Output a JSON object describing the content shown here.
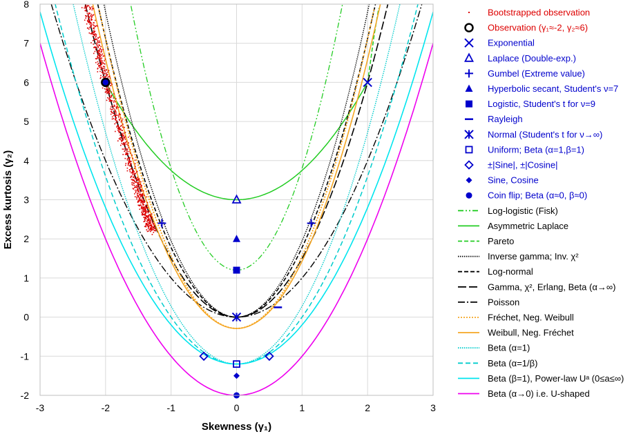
{
  "chart_data": {
    "type": "scatter",
    "xlabel": "Skewness (γ₁)",
    "ylabel": "Excess kurtosis (γ₂)",
    "xlim": [
      -3,
      3
    ],
    "ylim": [
      -2,
      8
    ],
    "xticks": [
      "-3",
      "-2",
      "-1",
      "0",
      "1",
      "2",
      "3"
    ],
    "yticks": [
      "-2",
      "-1",
      "0",
      "1",
      "2",
      "3",
      "4",
      "5",
      "6",
      "7",
      "8"
    ],
    "grid": true,
    "legend_position": "right",
    "points": [
      {
        "name": "Observation (γ₁≈-2, γ₂≈6)",
        "x": -2,
        "y": 6,
        "marker": "circle-open",
        "color": "#000000"
      },
      {
        "name": "Exponential",
        "x": 2,
        "y": 6,
        "marker": "x",
        "color": "#0000cc"
      },
      {
        "name": "Laplace (Double-exp.)",
        "x": 0,
        "y": 3,
        "marker": "triangle-open",
        "color": "#0000cc"
      },
      {
        "name": "Gumbel (Extreme value)",
        "x": 1.14,
        "y": 2.4,
        "marker": "plus",
        "color": "#0000cc"
      },
      {
        "name": "Gumbel (Extreme value)",
        "x": -1.14,
        "y": 2.4,
        "marker": "plus",
        "color": "#0000cc"
      },
      {
        "name": "Hyperbolic secant, Student's ν=7",
        "x": 0,
        "y": 2,
        "marker": "triangle",
        "color": "#0000cc"
      },
      {
        "name": "Logistic, Student's t for ν=9",
        "x": 0,
        "y": 1.2,
        "marker": "square",
        "color": "#0000cc"
      },
      {
        "name": "Rayleigh",
        "x": 0.63,
        "y": 0.25,
        "marker": "dash",
        "color": "#0000cc"
      },
      {
        "name": "Normal (Student's t for ν→∞)",
        "x": 0,
        "y": 0,
        "marker": "asterisk",
        "color": "#0000cc"
      },
      {
        "name": "Uniform; Beta (α=1,β=1)",
        "x": 0,
        "y": -1.2,
        "marker": "square-open",
        "color": "#0000cc"
      },
      {
        "name": "±|Sine|, ±|Cosine|",
        "x": -0.5,
        "y": -1,
        "marker": "diamond-open",
        "color": "#0000cc"
      },
      {
        "name": "±|Sine|, ±|Cosine|",
        "x": 0.5,
        "y": -1,
        "marker": "diamond-open",
        "color": "#0000cc"
      },
      {
        "name": "Sine, Cosine",
        "x": 0,
        "y": -1.5,
        "marker": "diamond",
        "color": "#0000cc"
      },
      {
        "name": "Coin flip; Beta (α≈0, β≈0)",
        "x": 0,
        "y": -2,
        "marker": "circle",
        "color": "#0000cc"
      },
      {
        "name": "Exponential (marker overlay on observation)",
        "x": -2,
        "y": 6,
        "marker": "circle",
        "color": "#0000cc"
      }
    ],
    "bootstrap_cloud": {
      "name": "Bootstrapped observation",
      "color": "#dd0000",
      "center_line": [
        [
          -2.3,
          8
        ],
        [
          -2.0,
          6
        ],
        [
          -1.55,
          3.5
        ],
        [
          -1.3,
          2.2
        ]
      ],
      "count": 900
    },
    "curves": [
      {
        "name": "Log-logistic (Fisk)",
        "color": "#22cc22",
        "dash": "8 3 2 3 2 3",
        "width": 1.3,
        "shape": "parabola",
        "params": {
          "vertex": 1.2,
          "a": 2.6
        },
        "x_range": [
          -2,
          2
        ]
      },
      {
        "name": "Asymmetric Laplace",
        "color": "#22cc22",
        "dash": "",
        "width": 1.5,
        "shape": "parabola",
        "params": {
          "vertex": 3.0,
          "a": 0.75
        },
        "x_range": [
          -2,
          2
        ]
      },
      {
        "name": "Pareto",
        "color": "#22cc22",
        "dash": "6 3",
        "width": 1.5,
        "shape": "points",
        "points": [
          [
            2.0,
            6.0
          ],
          [
            2.05,
            6.6
          ],
          [
            2.1,
            7.2
          ],
          [
            2.17,
            7.9
          ]
        ]
      },
      {
        "name": "Inverse gamma; Inv. χ²",
        "color": "#000000",
        "dash": "1.5 1.5",
        "width": 1.4,
        "shape": "parabola",
        "params": {
          "vertex": 0,
          "a": 1.95
        },
        "x_range": [
          -2.03,
          2.03
        ]
      },
      {
        "name": "Log-normal",
        "color": "#000000",
        "dash": "6 3",
        "width": 1.6,
        "shape": "parabola",
        "params": {
          "vertex": 0,
          "a": 1.78
        },
        "x_range": [
          -2.12,
          2.12
        ]
      },
      {
        "name": "Gamma, χ², Erlang, Beta (α→∞)",
        "color": "#000000",
        "dash": "12 4",
        "width": 1.6,
        "shape": "parabola",
        "params": {
          "vertex": 0,
          "a": 1.5
        },
        "x_range": [
          -2.31,
          2.31
        ]
      },
      {
        "name": "Poisson",
        "color": "#000000",
        "dash": "10 3 2 3",
        "width": 1.4,
        "shape": "parabola",
        "params": {
          "vertex": 0,
          "a": 1.0
        },
        "x_range": [
          -2.83,
          2.83
        ]
      },
      {
        "name": "Fréchet, Neg. Weibull",
        "color": "#f5a623",
        "dash": "2 2",
        "width": 2.0,
        "shape": "parabola",
        "params": {
          "vertex": -0.29,
          "a": 1.85
        },
        "x_range": [
          -2.1,
          2.1
        ]
      },
      {
        "name": "Weibull, Neg. Fréchet",
        "color": "#f5a623",
        "dash": "",
        "width": 1.6,
        "shape": "parabola",
        "params": {
          "vertex": -0.29,
          "a": 1.72
        },
        "x_range": [
          -2.2,
          2.2
        ]
      },
      {
        "name": "Beta (α=1)",
        "color": "#00cccc",
        "dash": "1.5 1.5",
        "width": 1.4,
        "shape": "parabola",
        "params": {
          "vertex": -1.2,
          "a": 1.48
        },
        "x_range": [
          -2.5,
          2.5
        ]
      },
      {
        "name": "Beta (α=1/β)",
        "color": "#00cccc",
        "dash": "7 4",
        "width": 1.5,
        "shape": "parabola",
        "params": {
          "vertex": -1.2,
          "a": 1.2
        },
        "x_range": [
          -2.8,
          2.8
        ]
      },
      {
        "name": "Beta (β=1), Power-law Uᵃ (0≤a≤∞)",
        "color": "#00e5ee",
        "dash": "",
        "width": 1.6,
        "shape": "parabola",
        "params": {
          "vertex": -1.2,
          "a": 1.0
        },
        "x_range": [
          -3,
          3
        ]
      },
      {
        "name": "Beta (α→0) i.e. U-shaped",
        "color": "#ee00ee",
        "dash": "",
        "width": 1.6,
        "shape": "parabola",
        "params": {
          "vertex": -2.0,
          "a": 1.0
        },
        "x_range": [
          -3,
          3
        ]
      }
    ]
  },
  "legend": [
    {
      "label": "Bootstrapped observation",
      "marker": "dot",
      "color": "#dd0000",
      "text_color": "#dd0000"
    },
    {
      "label": "Observation (γ₁≈-2, γ₂≈6)",
      "marker": "circle-open",
      "color": "#000000",
      "text_color": "#dd0000"
    },
    {
      "label": "Exponential",
      "marker": "x",
      "color": "#0000cc",
      "text_color": "#0000cc"
    },
    {
      "label": "Laplace (Double-exp.)",
      "marker": "triangle-open",
      "color": "#0000cc",
      "text_color": "#0000cc"
    },
    {
      "label": "Gumbel (Extreme value)",
      "marker": "plus",
      "color": "#0000cc",
      "text_color": "#0000cc"
    },
    {
      "label": "Hyperbolic secant, Student's ν=7",
      "marker": "triangle",
      "color": "#0000cc",
      "text_color": "#0000cc"
    },
    {
      "label": "Logistic, Student's t for ν=9",
      "marker": "square",
      "color": "#0000cc",
      "text_color": "#0000cc"
    },
    {
      "label": "Rayleigh",
      "marker": "dash",
      "color": "#0000cc",
      "text_color": "#0000cc"
    },
    {
      "label": "Normal (Student's t for ν→∞)",
      "marker": "asterisk",
      "color": "#0000cc",
      "text_color": "#0000cc"
    },
    {
      "label": "Uniform; Beta (α=1,β=1)",
      "marker": "square-open",
      "color": "#0000cc",
      "text_color": "#0000cc"
    },
    {
      "label": "±|Sine|, ±|Cosine|",
      "marker": "diamond-open",
      "color": "#0000cc",
      "text_color": "#0000cc"
    },
    {
      "label": "Sine, Cosine",
      "marker": "diamond",
      "color": "#0000cc",
      "text_color": "#0000cc"
    },
    {
      "label": "Coin flip; Beta (α≈0, β≈0)",
      "marker": "circle",
      "color": "#0000cc",
      "text_color": "#0000cc"
    },
    {
      "label": "Log-logistic (Fisk)",
      "marker": "line",
      "color": "#22cc22",
      "dash": "8 3 2 3 2 3",
      "text_color": "#000000"
    },
    {
      "label": "Asymmetric Laplace",
      "marker": "line",
      "color": "#22cc22",
      "dash": "",
      "text_color": "#000000"
    },
    {
      "label": "Pareto",
      "marker": "line",
      "color": "#22cc22",
      "dash": "6 3",
      "text_color": "#000000"
    },
    {
      "label": "Inverse gamma; Inv. χ²",
      "marker": "line",
      "color": "#000000",
      "dash": "1.5 1.5",
      "text_color": "#000000"
    },
    {
      "label": "Log-normal",
      "marker": "line",
      "color": "#000000",
      "dash": "6 3",
      "text_color": "#000000"
    },
    {
      "label": "Gamma, χ², Erlang, Beta (α→∞)",
      "marker": "line",
      "color": "#000000",
      "dash": "12 4",
      "text_color": "#000000"
    },
    {
      "label": "Poisson",
      "marker": "line",
      "color": "#000000",
      "dash": "10 3 2 3",
      "text_color": "#000000"
    },
    {
      "label": "Fréchet, Neg. Weibull",
      "marker": "line",
      "color": "#f5a623",
      "dash": "2 2",
      "text_color": "#000000"
    },
    {
      "label": "Weibull, Neg. Fréchet",
      "marker": "line",
      "color": "#f5a623",
      "dash": "",
      "text_color": "#000000"
    },
    {
      "label": "Beta (α=1)",
      "marker": "line",
      "color": "#00cccc",
      "dash": "1.5 1.5",
      "text_color": "#000000"
    },
    {
      "label": "Beta (α=1/β)",
      "marker": "line",
      "color": "#00cccc",
      "dash": "7 4",
      "text_color": "#000000"
    },
    {
      "label": "Beta (β=1), Power-law Uᵃ (0≤a≤∞)",
      "marker": "line",
      "color": "#00e5ee",
      "dash": "",
      "text_color": "#000000"
    },
    {
      "label": "Beta (α→0) i.e. U-shaped",
      "marker": "line",
      "color": "#ee00ee",
      "dash": "",
      "text_color": "#000000"
    }
  ]
}
